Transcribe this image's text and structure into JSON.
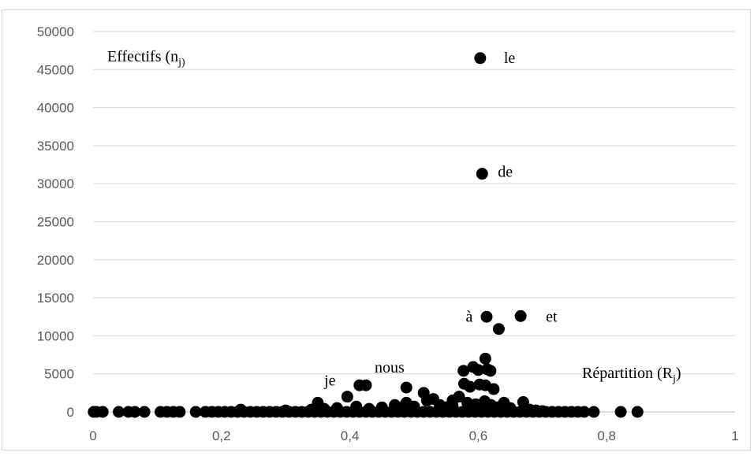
{
  "chart_data": {
    "type": "scatter",
    "title": "",
    "ylabel_main": "Effectifs (n",
    "ylabel_sub": "j)",
    "xlabel_main": "Répartition (R",
    "xlabel_sub": "j",
    "xlabel_close": ")",
    "xlim": [
      0,
      1
    ],
    "ylim": [
      0,
      50000
    ],
    "x_ticks": [
      0,
      0.2,
      0.4,
      0.6,
      0.8,
      1
    ],
    "x_tick_labels": [
      "0",
      "0,2",
      "0,4",
      "0,6",
      "0,8",
      "1"
    ],
    "y_ticks": [
      0,
      5000,
      10000,
      15000,
      20000,
      25000,
      30000,
      35000,
      40000,
      45000,
      50000
    ],
    "y_tick_labels": [
      "0",
      "5000",
      "10000",
      "15000",
      "20000",
      "25000",
      "30000",
      "35000",
      "40000",
      "45000",
      "50000"
    ],
    "grid": "horizontal",
    "marker_color": "#000000",
    "annotations": [
      {
        "text": "le",
        "x": 0.603,
        "y": 46500
      },
      {
        "text": "de",
        "x": 0.606,
        "y": 31300
      },
      {
        "text": "à",
        "x": 0.613,
        "y": 12500
      },
      {
        "text": "et",
        "x": 0.666,
        "y": 12600
      },
      {
        "text": "je",
        "x": 0.396,
        "y": 2000
      },
      {
        "text": "nous",
        "x": 0.425,
        "y": 3500
      }
    ],
    "points": [
      [
        0.603,
        46500
      ],
      [
        0.606,
        31300
      ],
      [
        0.613,
        12500
      ],
      [
        0.666,
        12600
      ],
      [
        0.632,
        10900
      ],
      [
        0.611,
        7000
      ],
      [
        0.577,
        5400
      ],
      [
        0.592,
        5900
      ],
      [
        0.6,
        5500
      ],
      [
        0.614,
        5600
      ],
      [
        0.619,
        5400
      ],
      [
        0.578,
        3700
      ],
      [
        0.587,
        3300
      ],
      [
        0.602,
        3600
      ],
      [
        0.611,
        3500
      ],
      [
        0.624,
        3000
      ],
      [
        0.415,
        3500
      ],
      [
        0.425,
        3500
      ],
      [
        0.396,
        2000
      ],
      [
        0.488,
        3200
      ],
      [
        0.515,
        2500
      ],
      [
        0.35,
        1200
      ],
      [
        0.488,
        1200
      ],
      [
        0.52,
        1500
      ],
      [
        0.53,
        1700
      ],
      [
        0.56,
        1500
      ],
      [
        0.57,
        2000
      ],
      [
        0.583,
        1200
      ],
      [
        0.596,
        1000
      ],
      [
        0.61,
        1400
      ],
      [
        0.64,
        1200
      ],
      [
        0.67,
        1300
      ],
      [
        0.485,
        800
      ],
      [
        0.001,
        0
      ],
      [
        0.005,
        0
      ],
      [
        0.015,
        0
      ],
      [
        0.04,
        0
      ],
      [
        0.055,
        0
      ],
      [
        0.065,
        0
      ],
      [
        0.08,
        0
      ],
      [
        0.105,
        0
      ],
      [
        0.115,
        0
      ],
      [
        0.125,
        0
      ],
      [
        0.135,
        0
      ],
      [
        0.16,
        0
      ],
      [
        0.175,
        0
      ],
      [
        0.185,
        0
      ],
      [
        0.195,
        0
      ],
      [
        0.205,
        0
      ],
      [
        0.215,
        0
      ],
      [
        0.225,
        0
      ],
      [
        0.235,
        0
      ],
      [
        0.245,
        0
      ],
      [
        0.255,
        0
      ],
      [
        0.265,
        0
      ],
      [
        0.275,
        0
      ],
      [
        0.285,
        0
      ],
      [
        0.295,
        0
      ],
      [
        0.305,
        0
      ],
      [
        0.315,
        0
      ],
      [
        0.325,
        0
      ],
      [
        0.335,
        0
      ],
      [
        0.345,
        0
      ],
      [
        0.355,
        0
      ],
      [
        0.365,
        0
      ],
      [
        0.375,
        0
      ],
      [
        0.385,
        0
      ],
      [
        0.395,
        0
      ],
      [
        0.405,
        0
      ],
      [
        0.415,
        0
      ],
      [
        0.425,
        0
      ],
      [
        0.435,
        0
      ],
      [
        0.445,
        0
      ],
      [
        0.455,
        0
      ],
      [
        0.465,
        0
      ],
      [
        0.475,
        0
      ],
      [
        0.485,
        0
      ],
      [
        0.495,
        0
      ],
      [
        0.505,
        0
      ],
      [
        0.515,
        0
      ],
      [
        0.525,
        0
      ],
      [
        0.535,
        0
      ],
      [
        0.545,
        0
      ],
      [
        0.555,
        0
      ],
      [
        0.565,
        0
      ],
      [
        0.575,
        0
      ],
      [
        0.585,
        0
      ],
      [
        0.595,
        0
      ],
      [
        0.605,
        0
      ],
      [
        0.615,
        0
      ],
      [
        0.625,
        0
      ],
      [
        0.635,
        0
      ],
      [
        0.645,
        0
      ],
      [
        0.655,
        0
      ],
      [
        0.665,
        0
      ],
      [
        0.675,
        0
      ],
      [
        0.685,
        0
      ],
      [
        0.695,
        0
      ],
      [
        0.705,
        0
      ],
      [
        0.715,
        0
      ],
      [
        0.725,
        0
      ],
      [
        0.735,
        0
      ],
      [
        0.745,
        0
      ],
      [
        0.755,
        0
      ],
      [
        0.765,
        0
      ],
      [
        0.78,
        0
      ],
      [
        0.822,
        0
      ],
      [
        0.848,
        0
      ],
      [
        0.23,
        300
      ],
      [
        0.3,
        200
      ],
      [
        0.34,
        300
      ],
      [
        0.36,
        400
      ],
      [
        0.38,
        500
      ],
      [
        0.41,
        700
      ],
      [
        0.43,
        400
      ],
      [
        0.45,
        600
      ],
      [
        0.47,
        900
      ],
      [
        0.5,
        700
      ],
      [
        0.54,
        900
      ],
      [
        0.55,
        600
      ],
      [
        0.56,
        800
      ],
      [
        0.59,
        700
      ],
      [
        0.62,
        900
      ],
      [
        0.63,
        600
      ],
      [
        0.65,
        500
      ],
      [
        0.68,
        300
      ],
      [
        0.69,
        200
      ],
      [
        0.7,
        100
      ]
    ]
  }
}
